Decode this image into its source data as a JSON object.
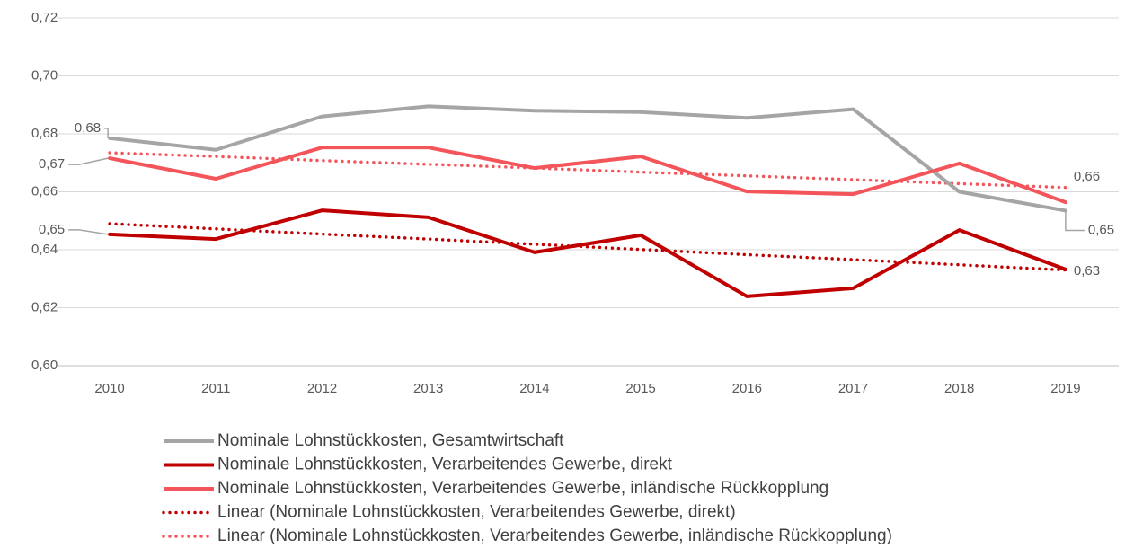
{
  "chart_data": {
    "type": "line",
    "categories": [
      "2010",
      "2011",
      "2012",
      "2013",
      "2014",
      "2015",
      "2016",
      "2017",
      "2018",
      "2019"
    ],
    "series": [
      {
        "name": "Nominale Lohnstückkosten, Gesamtwirtschaft",
        "color": "#a5a5a5",
        "style": "solid",
        "values": [
          0.6785,
          0.6745,
          0.686,
          0.6895,
          0.688,
          0.6875,
          0.6855,
          0.6885,
          0.66,
          0.6535
        ],
        "value_labels": [
          "0,68",
          null,
          null,
          null,
          null,
          null,
          null,
          null,
          null,
          "0,65"
        ]
      },
      {
        "name": "Nominale Lohnstückkosten, Verarbeitendes Gewerbe, direkt",
        "color": "#c00000",
        "style": "solid",
        "values": [
          0.6453,
          0.6437,
          0.6536,
          0.6512,
          0.6391,
          0.645,
          0.6239,
          0.6267,
          0.6468,
          0.6332
        ],
        "value_labels": [
          "0,65",
          null,
          null,
          null,
          null,
          null,
          null,
          null,
          null,
          "0,63"
        ]
      },
      {
        "name": "Nominale Lohnstückkosten, Verarbeitendes Gewerbe, inländische Rückkopplung",
        "color": "#f4555a",
        "style": "solid",
        "values": [
          0.6716,
          0.6645,
          0.6753,
          0.6753,
          0.6682,
          0.6722,
          0.6601,
          0.6592,
          0.6698,
          0.6564
        ],
        "value_labels": [
          "0,67",
          null,
          null,
          null,
          null,
          null,
          null,
          null,
          null,
          "0,66"
        ]
      },
      {
        "name": "Linear (Nominale Lohnstückkosten, Verarbeitendes Gewerbe, direkt)",
        "color": "#c00000",
        "style": "dotted",
        "values": [
          0.649,
          0.6472,
          0.6454,
          0.6437,
          0.6419,
          0.6401,
          0.6383,
          0.6366,
          0.6348,
          0.633
        ]
      },
      {
        "name": "Linear (Nominale Lohnstückkosten, Verarbeitendes Gewerbe, inländische Rückkopplung)",
        "color": "#f4555a",
        "style": "dotted",
        "values": [
          0.6735,
          0.6722,
          0.6708,
          0.6695,
          0.6682,
          0.6668,
          0.6655,
          0.6642,
          0.6628,
          0.6615
        ]
      }
    ],
    "ylim": [
      0.6,
      0.72
    ],
    "yticks": [
      {
        "value": 0.6,
        "label": "0,60"
      },
      {
        "value": 0.62,
        "label": "0,62"
      },
      {
        "value": 0.64,
        "label": "0,64"
      },
      {
        "value": 0.66,
        "label": "0,66"
      },
      {
        "value": 0.68,
        "label": "0,68"
      },
      {
        "value": 0.7,
        "label": "0,70"
      },
      {
        "value": 0.72,
        "label": "0,72"
      }
    ],
    "grid": true,
    "legend": "bottom"
  }
}
